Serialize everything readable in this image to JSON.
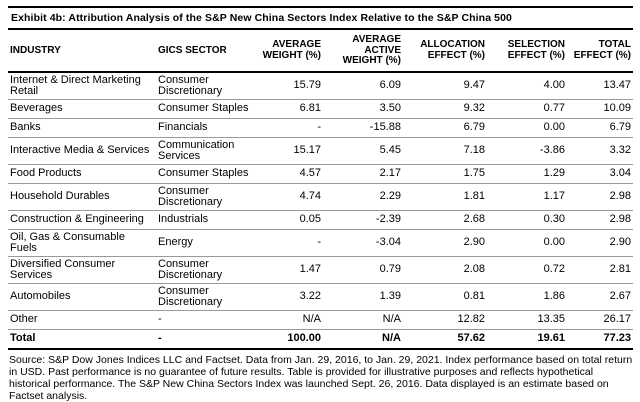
{
  "exhibit": {
    "title": "Exhibit 4b: Attribution Analysis of the S&P New China Sectors Index Relative to the S&P China 500"
  },
  "table": {
    "columns": [
      {
        "key": "industry",
        "label": "INDUSTRY",
        "align": "left"
      },
      {
        "key": "gics_sector",
        "label": "GICS SECTOR",
        "align": "left"
      },
      {
        "key": "avg_weight",
        "label": "AVERAGE WEIGHT (%)",
        "align": "right"
      },
      {
        "key": "avg_active_weight",
        "label": "AVERAGE ACTIVE WEIGHT (%)",
        "align": "right"
      },
      {
        "key": "allocation_effect",
        "label": "ALLOCATION EFFECT (%)",
        "align": "right"
      },
      {
        "key": "selection_effect",
        "label": "SELECTION EFFECT (%)",
        "align": "right"
      },
      {
        "key": "total_effect",
        "label": "TOTAL EFFECT (%)",
        "align": "right"
      }
    ],
    "rows": [
      {
        "industry": "Internet & Direct Marketing Retail",
        "gics_sector": "Consumer Discretionary",
        "avg_weight": "15.79",
        "avg_active_weight": "6.09",
        "allocation_effect": "9.47",
        "selection_effect": "4.00",
        "total_effect": "13.47",
        "is_total": false
      },
      {
        "industry": "Beverages",
        "gics_sector": "Consumer Staples",
        "avg_weight": "6.81",
        "avg_active_weight": "3.50",
        "allocation_effect": "9.32",
        "selection_effect": "0.77",
        "total_effect": "10.09",
        "is_total": false
      },
      {
        "industry": "Banks",
        "gics_sector": "Financials",
        "avg_weight": "-",
        "avg_active_weight": "-15.88",
        "allocation_effect": "6.79",
        "selection_effect": "0.00",
        "total_effect": "6.79",
        "is_total": false
      },
      {
        "industry": "Interactive Media & Services",
        "gics_sector": "Communication Services",
        "avg_weight": "15.17",
        "avg_active_weight": "5.45",
        "allocation_effect": "7.18",
        "selection_effect": "-3.86",
        "total_effect": "3.32",
        "is_total": false
      },
      {
        "industry": "Food Products",
        "gics_sector": "Consumer Staples",
        "avg_weight": "4.57",
        "avg_active_weight": "2.17",
        "allocation_effect": "1.75",
        "selection_effect": "1.29",
        "total_effect": "3.04",
        "is_total": false
      },
      {
        "industry": "Household Durables",
        "gics_sector": "Consumer Discretionary",
        "avg_weight": "4.74",
        "avg_active_weight": "2.29",
        "allocation_effect": "1.81",
        "selection_effect": "1.17",
        "total_effect": "2.98",
        "is_total": false
      },
      {
        "industry": "Construction & Engineering",
        "gics_sector": "Industrials",
        "avg_weight": "0.05",
        "avg_active_weight": "-2.39",
        "allocation_effect": "2.68",
        "selection_effect": "0.30",
        "total_effect": "2.98",
        "is_total": false
      },
      {
        "industry": "Oil, Gas & Consumable Fuels",
        "gics_sector": "Energy",
        "avg_weight": "-",
        "avg_active_weight": "-3.04",
        "allocation_effect": "2.90",
        "selection_effect": "0.00",
        "total_effect": "2.90",
        "is_total": false
      },
      {
        "industry": "Diversified Consumer Services",
        "gics_sector": "Consumer Discretionary",
        "avg_weight": "1.47",
        "avg_active_weight": "0.79",
        "allocation_effect": "2.08",
        "selection_effect": "0.72",
        "total_effect": "2.81",
        "is_total": false
      },
      {
        "industry": "Automobiles",
        "gics_sector": "Consumer Discretionary",
        "avg_weight": "3.22",
        "avg_active_weight": "1.39",
        "allocation_effect": "0.81",
        "selection_effect": "1.86",
        "total_effect": "2.67",
        "is_total": false
      },
      {
        "industry": "Other",
        "gics_sector": "-",
        "avg_weight": "N/A",
        "avg_active_weight": "N/A",
        "allocation_effect": "12.82",
        "selection_effect": "13.35",
        "total_effect": "26.17",
        "is_total": false
      },
      {
        "industry": "Total",
        "gics_sector": "-",
        "avg_weight": "100.00",
        "avg_active_weight": "N/A",
        "allocation_effect": "57.62",
        "selection_effect": "19.61",
        "total_effect": "77.23",
        "is_total": true
      }
    ]
  },
  "footer": {
    "text": "Source: S&P Dow Jones Indices LLC and Factset. Data from Jan. 29, 2016, to Jan. 29, 2021. Index performance based on total return in USD. Past performance is no guarantee of future results. Table is provided for illustrative purposes and reflects hypothetical historical performance. The S&P New China Sectors Index was launched Sept. 26, 2016. Data displayed is an estimate based on Factset analysis."
  },
  "colors": {
    "rule_black": "#000000",
    "row_divider": "#9a9a9a",
    "text": "#000000",
    "background": "#ffffff"
  }
}
